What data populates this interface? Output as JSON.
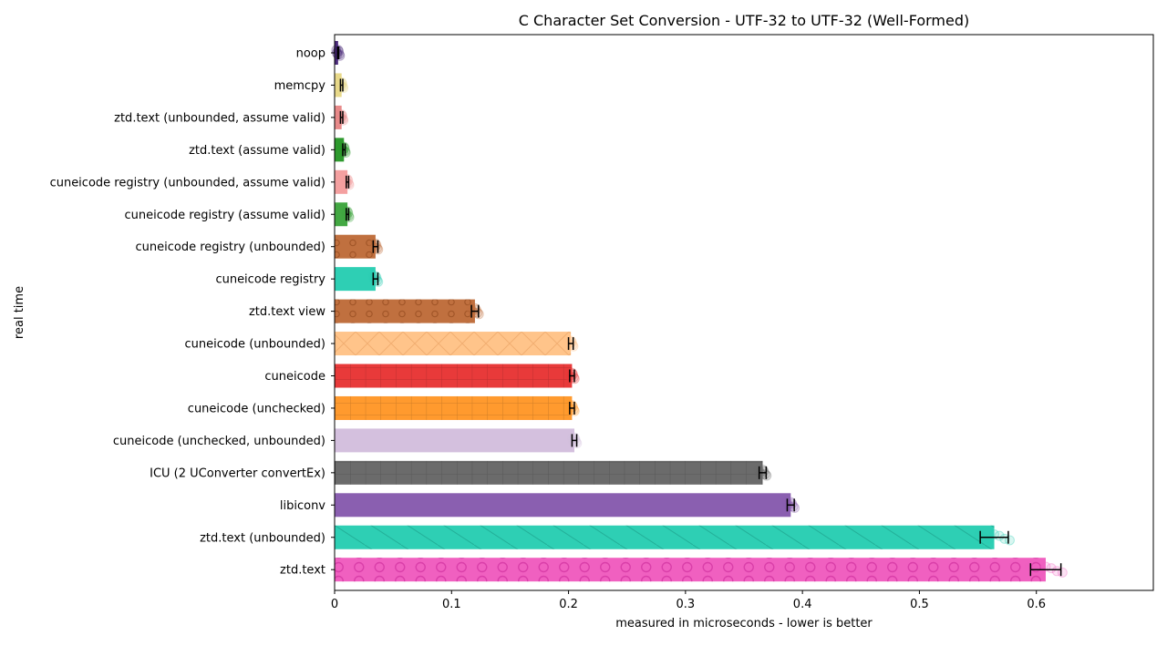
{
  "chart_data": {
    "type": "bar",
    "orientation": "horizontal",
    "title": "C Character Set Conversion - UTF-32 to UTF-32 (Well-Formed)",
    "xlabel": "measured in microseconds - lower is better",
    "ylabel": "real time",
    "xlim": [
      0,
      0.7
    ],
    "x_ticks": [
      "0",
      "0.1",
      "0.2",
      "0.3",
      "0.4",
      "0.5",
      "0.6"
    ],
    "grid": false,
    "legend": "none",
    "categories": [
      "noop",
      "memcpy",
      "ztd.text (unbounded, assume valid)",
      "ztd.text (assume valid)",
      "cuneicode registry (unbounded, assume valid)",
      "cuneicode registry (assume valid)",
      "cuneicode registry (unbounded)",
      "cuneicode registry",
      "ztd.text view",
      "cuneicode (unbounded)",
      "cuneicode",
      "cuneicode (unchecked)",
      "cuneicode (unchecked, unbounded)",
      "ICU (2 UConverter convertEx)",
      "libiconv",
      "ztd.text (unbounded)",
      "ztd.text"
    ],
    "values": [
      0.003,
      0.006,
      0.006,
      0.008,
      0.011,
      0.011,
      0.035,
      0.035,
      0.12,
      0.202,
      0.203,
      0.203,
      0.205,
      0.366,
      0.39,
      0.564,
      0.608
    ],
    "errors": [
      0.0005,
      0.001,
      0.001,
      0.001,
      0.001,
      0.001,
      0.002,
      0.002,
      0.003,
      0.002,
      0.002,
      0.002,
      0.002,
      0.003,
      0.003,
      0.012,
      0.013
    ],
    "colors": [
      "#4b2a7b",
      "#e8d98a",
      "#e88a8a",
      "#2e9a2e",
      "#f4a0a0",
      "#43a843",
      "#c0703f",
      "#2ecfb4",
      "#c0703f",
      "#ffc48a",
      "#e83a3a",
      "#ff9a2e",
      "#d4c0de",
      "#6b6b6b",
      "#8a5fb0",
      "#2ecfb4",
      "#f060c0"
    ],
    "hatches": [
      "none",
      "none",
      "none",
      "none",
      "none",
      "none",
      "dots",
      "none",
      "dots",
      "cross",
      "grid",
      "grid",
      "none",
      "grid",
      "none",
      "diag",
      "circles"
    ]
  }
}
